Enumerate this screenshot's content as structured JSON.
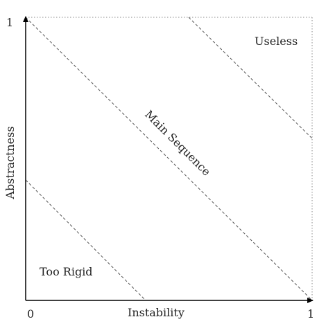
{
  "axes": {
    "x": {
      "title": "Instability",
      "tick_min": "0",
      "tick_max": "1"
    },
    "y": {
      "title": "Abstractness",
      "tick_max": "1"
    }
  },
  "regions": {
    "main_sequence": "Main Sequence",
    "zone_of_pain": "Too Rigid",
    "zone_of_uselessness": "Useless"
  },
  "colors": {
    "axis": "#000000",
    "dashed": "#555555",
    "text": "#222222"
  }
}
